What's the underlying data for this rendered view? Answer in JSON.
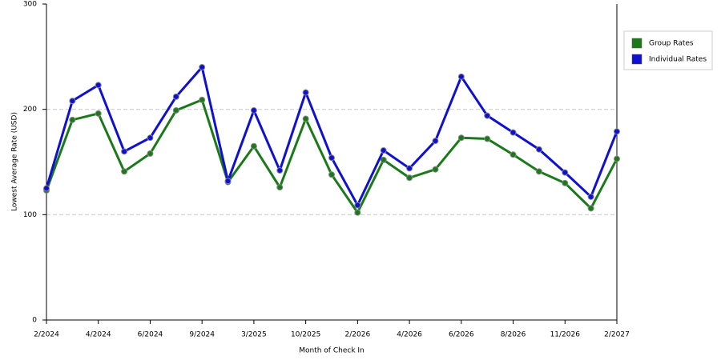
{
  "chart_data": {
    "type": "line",
    "x_label": "Month of Check In",
    "y_label": "Lowest Average Rate (USD)",
    "categories": [
      "2/2024",
      null,
      "4/2024",
      null,
      "6/2024",
      null,
      "9/2024",
      null,
      "3/2025",
      null,
      "10/2025",
      null,
      "2/2026",
      null,
      "4/2026",
      null,
      "6/2026",
      null,
      "8/2026",
      null,
      "11/2026",
      null,
      "2/2027"
    ],
    "series": [
      {
        "name": "Group Rates",
        "color": "#1a7a1a",
        "values": [
          123,
          190,
          196,
          141,
          158,
          199,
          209,
          131,
          165,
          126,
          191,
          138,
          102,
          152,
          135,
          143,
          173,
          172,
          157,
          141,
          130,
          106,
          153
        ]
      },
      {
        "name": "Individual Rates",
        "color": "#1010d0",
        "values": [
          125,
          208,
          223,
          160,
          173,
          212,
          240,
          132,
          199,
          142,
          216,
          154,
          109,
          161,
          144,
          170,
          231,
          194,
          178,
          162,
          140,
          117,
          179
        ]
      }
    ],
    "ylim": [
      0,
      300
    ],
    "yticks": [
      0,
      100,
      200,
      300
    ],
    "grid": true,
    "legend": "right"
  }
}
